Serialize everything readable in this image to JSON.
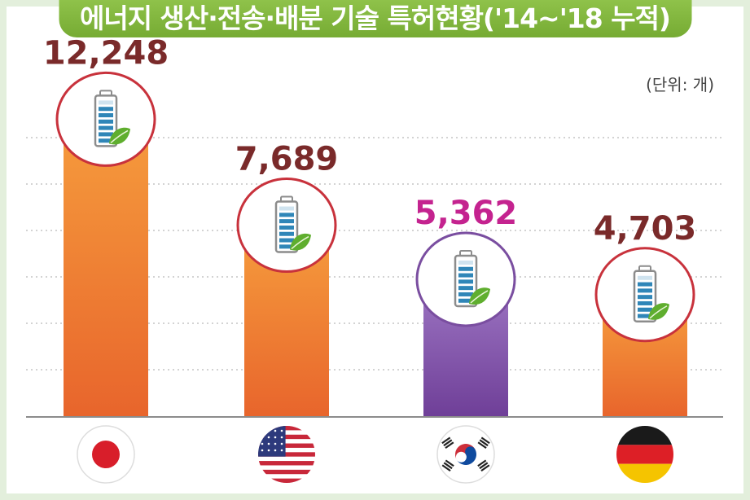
{
  "chart_data": {
    "type": "bar",
    "title": "에너지 생산·전송·배분 기술 특허현황('14~'18 누적)",
    "unit_label": "(단위: 개)",
    "categories": [
      "Japan",
      "USA",
      "Korea",
      "Germany"
    ],
    "values": [
      12248,
      7689,
      5362,
      4703
    ],
    "value_labels": [
      "12,248",
      "7,689",
      "5,362",
      "4,703"
    ],
    "ylim": [
      0,
      14400
    ],
    "grid": true,
    "bar_colors": [
      "#ee7a33",
      "#ee7a33",
      "#8a55ad",
      "#ee7a33"
    ],
    "label_colors": [
      "#7a2a2a",
      "#7a2a2a",
      "#c4238f",
      "#7a2a2a"
    ],
    "circle_colors": [
      "#c8323c",
      "#c8323c",
      "#7a4ea0",
      "#c8323c"
    ],
    "icons": [
      "battery-leaf-icon",
      "battery-leaf-icon",
      "battery-leaf-icon",
      "battery-leaf-icon"
    ],
    "flags": [
      "japan-flag-icon",
      "usa-flag-icon",
      "korea-flag-icon",
      "germany-flag-icon"
    ]
  }
}
